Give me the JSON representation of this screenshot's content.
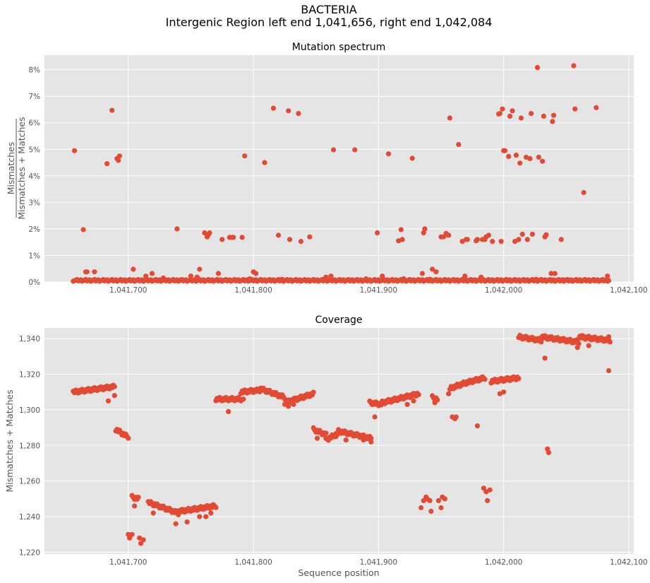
{
  "suptitle_line1": "BACTERIA",
  "suptitle_line2": "Intergenic Region left end 1,041,656, right end 1,042,084",
  "x_tick_labels": [
    "1,041,700",
    "1,041,800",
    "1,041,900",
    "1,042,000",
    "1,042,100"
  ],
  "colors": {
    "marker": "#e24a33",
    "panel_bg": "#e5e5e5",
    "grid": "#ffffff"
  },
  "chart_data": [
    {
      "type": "scatter",
      "title": "Mutation spectrum",
      "xlabel": "",
      "ylabel_numerator": "Mismatches",
      "ylabel_denominator": "Mismatches + Matches",
      "xlim": [
        1041633,
        1042104
      ],
      "ylim": [
        0,
        8.55
      ],
      "y_unit": "%",
      "y_ticks": [
        0,
        1,
        2,
        3,
        4,
        5,
        6,
        7,
        8
      ],
      "y_tick_labels": [
        "0%",
        "1%",
        "2%",
        "3%",
        "4%",
        "5%",
        "6%",
        "7%",
        "8%"
      ],
      "x_ticks": [
        1041700,
        1041800,
        1041900,
        1042000,
        1042100
      ],
      "grid": true,
      "points": [
        [
          1041657,
          4.95
        ],
        [
          1041664,
          1.97
        ],
        [
          1041687,
          6.47
        ],
        [
          1041683,
          4.46
        ],
        [
          1041691,
          4.65
        ],
        [
          1041692,
          4.58
        ],
        [
          1041693,
          4.75
        ],
        [
          1041666,
          0.38
        ],
        [
          1041667,
          0.38
        ],
        [
          1041673,
          0.38
        ],
        [
          1041704,
          0.48
        ],
        [
          1041714,
          0.22
        ],
        [
          1041719,
          0.32
        ],
        [
          1041739,
          2.0
        ],
        [
          1041750,
          0.22
        ],
        [
          1041757,
          0.48
        ],
        [
          1041761,
          1.85
        ],
        [
          1041763,
          1.7
        ],
        [
          1041764,
          1.78
        ],
        [
          1041765,
          1.85
        ],
        [
          1041772,
          0.32
        ],
        [
          1041775,
          1.6
        ],
        [
          1041781,
          1.68
        ],
        [
          1041783,
          1.68
        ],
        [
          1041784,
          1.68
        ],
        [
          1041791,
          1.68
        ],
        [
          1041793,
          4.75
        ],
        [
          1041800,
          0.38
        ],
        [
          1041802,
          0.32
        ],
        [
          1041809,
          4.5
        ],
        [
          1041816,
          6.55
        ],
        [
          1041820,
          1.76
        ],
        [
          1041828,
          6.45
        ],
        [
          1041829,
          1.6
        ],
        [
          1041836,
          6.35
        ],
        [
          1041838,
          1.53
        ],
        [
          1041845,
          1.7
        ],
        [
          1041858,
          0.18
        ],
        [
          1041864,
          4.98
        ],
        [
          1041881,
          4.98
        ],
        [
          1041899,
          1.85
        ],
        [
          1041908,
          4.83
        ],
        [
          1041916,
          1.55
        ],
        [
          1041918,
          1.97
        ],
        [
          1041919,
          1.6
        ],
        [
          1041927,
          4.66
        ],
        [
          1041935,
          0.32
        ],
        [
          1041936,
          1.85
        ],
        [
          1041937,
          2.0
        ],
        [
          1041943,
          0.48
        ],
        [
          1041946,
          0.38
        ],
        [
          1041950,
          1.7
        ],
        [
          1041952,
          1.7
        ],
        [
          1041954,
          1.83
        ],
        [
          1041956,
          1.76
        ],
        [
          1041957,
          6.18
        ],
        [
          1041964,
          5.18
        ],
        [
          1041967,
          1.53
        ],
        [
          1041970,
          1.6
        ],
        [
          1041971,
          1.6
        ],
        [
          1041978,
          1.55
        ],
        [
          1041979,
          1.6
        ],
        [
          1041983,
          1.6
        ],
        [
          1041985,
          1.6
        ],
        [
          1041986,
          1.7
        ],
        [
          1041988,
          1.76
        ],
        [
          1041991,
          1.53
        ],
        [
          1041996,
          6.33
        ],
        [
          1041997,
          6.35
        ],
        [
          1041998,
          1.53
        ],
        [
          1041999,
          6.52
        ],
        [
          1042000,
          4.95
        ],
        [
          1042001,
          4.95
        ],
        [
          1042004,
          4.73
        ],
        [
          1042005,
          6.25
        ],
        [
          1042007,
          6.45
        ],
        [
          1042009,
          1.53
        ],
        [
          1042010,
          4.78
        ],
        [
          1042012,
          1.6
        ],
        [
          1042013,
          4.48
        ],
        [
          1042014,
          6.18
        ],
        [
          1042015,
          1.8
        ],
        [
          1042018,
          4.7
        ],
        [
          1042019,
          1.6
        ],
        [
          1042021,
          4.65
        ],
        [
          1042022,
          6.35
        ],
        [
          1042023,
          1.8
        ],
        [
          1042027,
          8.08
        ],
        [
          1042028,
          4.7
        ],
        [
          1042031,
          4.55
        ],
        [
          1042032,
          6.25
        ],
        [
          1042033,
          1.7
        ],
        [
          1042034,
          1.78
        ],
        [
          1042038,
          0.32
        ],
        [
          1042039,
          6.05
        ],
        [
          1042040,
          6.28
        ],
        [
          1042041,
          0.32
        ],
        [
          1042046,
          1.6
        ],
        [
          1042056,
          8.15
        ],
        [
          1042057,
          6.52
        ],
        [
          1042064,
          3.37
        ],
        [
          1042074,
          6.57
        ],
        [
          1042083,
          0.22
        ],
        [
          1041728,
          0.15
        ],
        [
          1041742,
          0.08
        ],
        [
          1041755,
          0.18
        ],
        [
          1041797,
          0.12
        ],
        [
          1041823,
          0.1
        ],
        [
          1041862,
          0.22
        ],
        [
          1041890,
          0.12
        ],
        [
          1041903,
          0.22
        ],
        [
          1041920,
          0.12
        ],
        [
          1041941,
          0.1
        ],
        [
          1041969,
          0.22
        ],
        [
          1041982,
          0.18
        ],
        [
          1042003,
          0.08
        ],
        [
          1042026,
          0.1
        ],
        [
          1042048,
          0.08
        ]
      ],
      "baseline_points": {
        "description": "",
        "x_range": [
          1041656,
          1042084
        ],
        "value": 0.03
      }
    },
    {
      "type": "scatter",
      "title": "Coverage",
      "xlabel": "Sequence position",
      "ylabel": "Mismatches + Matches",
      "xlim": [
        1041633,
        1042104
      ],
      "ylim": [
        1219,
        1346
      ],
      "y_ticks": [
        1220,
        1240,
        1260,
        1280,
        1300,
        1320,
        1340
      ],
      "y_tick_labels": [
        "1,220",
        "1,240",
        "1,260",
        "1,280",
        "1,300",
        "1,320",
        "1,340"
      ],
      "x_ticks": [
        1041700,
        1041800,
        1041900,
        1042000,
        1042100
      ],
      "grid": true,
      "segments": [
        [
          1041656,
          1041689,
          1310,
          1313
        ],
        [
          1041690,
          1041699,
          1289,
          1285
        ],
        [
          1041703,
          1041708,
          1251,
          1250
        ],
        [
          1041716,
          1041740,
          1248,
          1242
        ],
        [
          1041741,
          1041770,
          1243,
          1246
        ],
        [
          1041770,
          1041790,
          1306,
          1306
        ],
        [
          1041790,
          1041805,
          1310,
          1311
        ],
        [
          1041805,
          1041825,
          1312,
          1307
        ],
        [
          1041825,
          1041848,
          1304,
          1309
        ],
        [
          1041848,
          1041858,
          1289,
          1286
        ],
        [
          1041858,
          1041868,
          1283,
          1287
        ],
        [
          1041868,
          1041894,
          1288,
          1284
        ],
        [
          1041893,
          1041903,
          1304,
          1303
        ],
        [
          1041903,
          1041932,
          1304,
          1309
        ],
        [
          1041943,
          1041947,
          1307,
          1306
        ],
        [
          1041957,
          1041969,
          1312,
          1315
        ],
        [
          1041969,
          1041985,
          1315,
          1318
        ],
        [
          1041990,
          1042012,
          1316,
          1318
        ],
        [
          1042012,
          1042030,
          1341,
          1339
        ],
        [
          1042030,
          1042060,
          1341,
          1338
        ],
        [
          1042060,
          1042085,
          1341,
          1339
        ]
      ],
      "points": [
        [
          1041684,
          1305
        ],
        [
          1041689,
          1308
        ],
        [
          1041700,
          1284
        ],
        [
          1041700,
          1230
        ],
        [
          1041701,
          1228
        ],
        [
          1041703,
          1230
        ],
        [
          1041709,
          1228
        ],
        [
          1041710,
          1225
        ],
        [
          1041712,
          1227
        ],
        [
          1041705,
          1246
        ],
        [
          1041720,
          1242
        ],
        [
          1041738,
          1236
        ],
        [
          1041747,
          1237
        ],
        [
          1041757,
          1240
        ],
        [
          1041762,
          1240
        ],
        [
          1041766,
          1242
        ],
        [
          1041780,
          1299
        ],
        [
          1041792,
          1306
        ],
        [
          1041828,
          1302
        ],
        [
          1041832,
          1303
        ],
        [
          1041851,
          1284
        ],
        [
          1041866,
          1285
        ],
        [
          1041874,
          1283
        ],
        [
          1041888,
          1283
        ],
        [
          1041894,
          1282
        ],
        [
          1041897,
          1296
        ],
        [
          1041923,
          1303
        ],
        [
          1041928,
          1305
        ],
        [
          1041934,
          1245
        ],
        [
          1041936,
          1249
        ],
        [
          1041938,
          1251
        ],
        [
          1041939,
          1250
        ],
        [
          1041941,
          1249
        ],
        [
          1041942,
          1243
        ],
        [
          1041945,
          1304
        ],
        [
          1041948,
          1249
        ],
        [
          1041950,
          1245
        ],
        [
          1041951,
          1251
        ],
        [
          1041953,
          1250
        ],
        [
          1041956,
          1309
        ],
        [
          1041958,
          1312
        ],
        [
          1041959,
          1296
        ],
        [
          1041961,
          1295
        ],
        [
          1041962,
          1296
        ],
        [
          1041979,
          1291
        ],
        [
          1041984,
          1256
        ],
        [
          1041986,
          1254
        ],
        [
          1041987,
          1249
        ],
        [
          1041989,
          1255
        ],
        [
          1041997,
          1309
        ],
        [
          1042000,
          1310
        ],
        [
          1042033,
          1329
        ],
        [
          1042035,
          1278
        ],
        [
          1042036,
          1276
        ],
        [
          1042059,
          1335
        ],
        [
          1042068,
          1336
        ],
        [
          1042084,
          1322
        ],
        [
          1042084,
          1341
        ]
      ]
    }
  ]
}
